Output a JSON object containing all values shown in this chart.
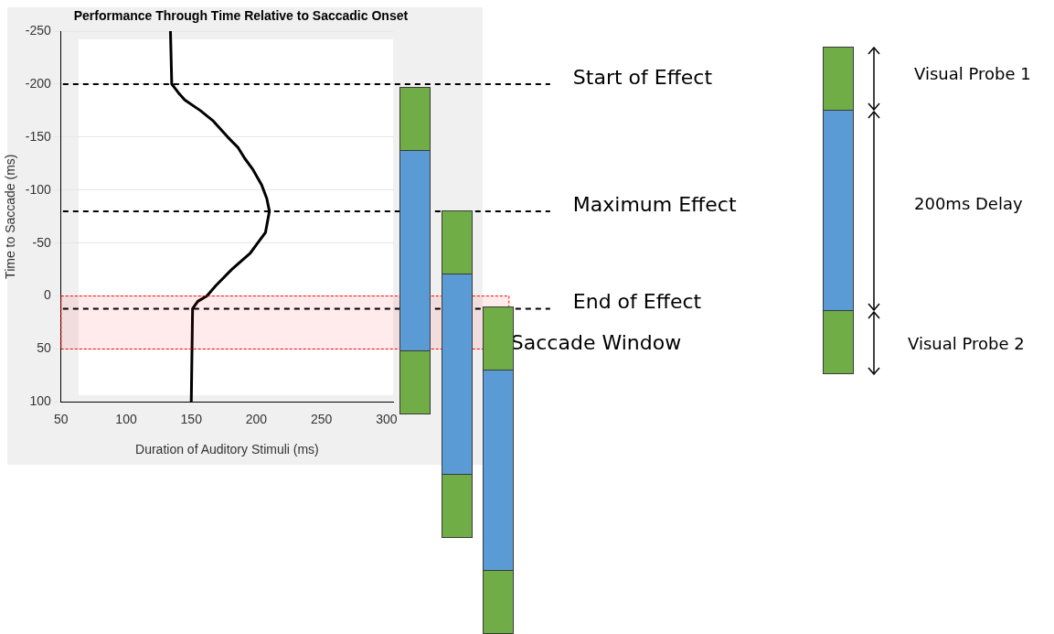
{
  "chart_data": {
    "type": "line",
    "title": "Performance Through Time Relative to Saccadic Onset",
    "xlabel": "Duration of Auditory Stimuli (ms)",
    "ylabel": "Time to Saccade (ms)",
    "series": [
      {
        "color": "#000000",
        "x": [
          134,
          135,
          140,
          145,
          157,
          167,
          178,
          186,
          191,
          197,
          204,
          208,
          210,
          207,
          201,
          195,
          181,
          169,
          162,
          155,
          151,
          150
        ],
        "values": [
          -250,
          -200,
          -192,
          -185,
          -175,
          -165,
          -150,
          -140,
          -130,
          -120,
          -105,
          -92,
          -80,
          -60,
          -50,
          -40,
          -25,
          -10,
          0,
          5,
          12,
          100
        ]
      }
    ],
    "xlim": [
      50,
      305
    ],
    "xticks": [
      50,
      100,
      150,
      200,
      250,
      300
    ],
    "ylim": [
      100,
      -250
    ],
    "yticks": [
      -250,
      -200,
      -150,
      -100,
      -50,
      0,
      50,
      100
    ],
    "grid": "y",
    "legend": false,
    "marker": "none",
    "line_style": "solid",
    "ref_lines": [
      {
        "axis": "y",
        "value": -200,
        "label": "Start of Effect",
        "color": "#000000",
        "line_style": "dashed"
      },
      {
        "axis": "y",
        "value": -80,
        "label": "Maximum Effect",
        "color": "#000000",
        "line_style": "dashed"
      },
      {
        "axis": "y",
        "value": 12,
        "label": "End of Effect",
        "color": "#000000",
        "line_style": "dashed"
      }
    ],
    "bands": [
      {
        "axis": "y",
        "from": 0,
        "to": 50,
        "label": "Saccade Window",
        "color": "#ff0000"
      }
    ],
    "annotations": [
      "Visual Probe 1",
      "200ms Delay",
      "Visual Probe 2"
    ]
  }
}
